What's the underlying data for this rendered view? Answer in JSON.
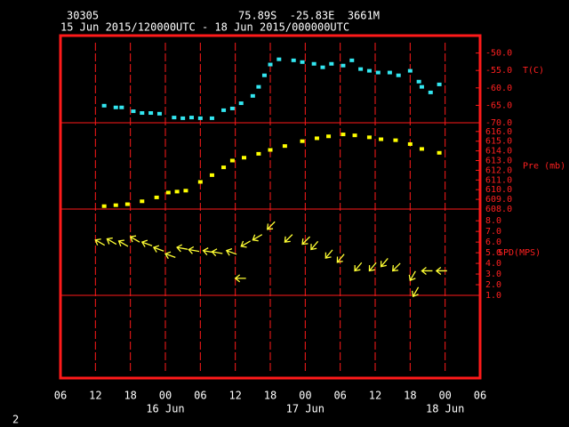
{
  "header": {
    "station": "30305",
    "location": "75.89S  -25.83E  3661M",
    "period": "15 Jun 2015/120000UTC - 18 Jun 2015/000000UTC",
    "footer": "2"
  },
  "chart_data": {
    "type": "meteogram",
    "xlim": [
      6,
      78
    ],
    "xticks": [
      {
        "value": 6,
        "label": "06"
      },
      {
        "value": 12,
        "label": "12"
      },
      {
        "value": 18,
        "label": "18"
      },
      {
        "value": 24,
        "label": "00"
      },
      {
        "value": 30,
        "label": "06"
      },
      {
        "value": 36,
        "label": "12"
      },
      {
        "value": 42,
        "label": "18"
      },
      {
        "value": 48,
        "label": "00"
      },
      {
        "value": 54,
        "label": "06"
      },
      {
        "value": 60,
        "label": "12"
      },
      {
        "value": 66,
        "label": "18"
      },
      {
        "value": 72,
        "label": "00"
      },
      {
        "value": 78,
        "label": "06"
      }
    ],
    "date_labels": [
      {
        "value": 24,
        "label": "16 Jun"
      },
      {
        "value": 48,
        "label": "17 Jun"
      },
      {
        "value": 72,
        "label": "18 Jun"
      }
    ],
    "grid": true,
    "frame_color": "#ff1a1a",
    "panels": [
      {
        "type": "scatter",
        "label": "T(C)",
        "color": "#33e6f0",
        "ylim": [
          -70,
          -45
        ],
        "yticks": [
          {
            "value": -70,
            "label": "-70.0"
          },
          {
            "value": -65,
            "label": "-65.0"
          },
          {
            "value": -60,
            "label": "-60.0"
          },
          {
            "value": -55,
            "label": "-55.0"
          },
          {
            "value": -50,
            "label": "-50.0"
          }
        ],
        "x": [
          13.5,
          15.5,
          16.5,
          18.5,
          20,
          21.5,
          23,
          25.5,
          27,
          28.5,
          30,
          32,
          34,
          35.5,
          37,
          39,
          40,
          41,
          42,
          43.5,
          46,
          47.5,
          49.5,
          51,
          52.5,
          54.5,
          56,
          57.5,
          59,
          60.5,
          62.5,
          64,
          66,
          67.5,
          68,
          69.5,
          71
        ],
        "values": [
          -65.1,
          -65.6,
          -65.6,
          -66.7,
          -67.2,
          -67.2,
          -67.4,
          -68.5,
          -68.7,
          -68.5,
          -68.7,
          -68.7,
          -66.4,
          -65.9,
          -64.4,
          -62.3,
          -59.7,
          -56.4,
          -53.3,
          -51.8,
          -52.1,
          -52.6,
          -53.1,
          -54.1,
          -53.1,
          -53.6,
          -52.1,
          -54.6,
          -55.1,
          -55.6,
          -55.6,
          -56.4,
          -55.1,
          -58.2,
          -59.7,
          -61.3,
          -59.0
        ]
      },
      {
        "type": "scatter",
        "label": "Pre (mb)",
        "color": "#ffff00",
        "ylim": [
          608,
          616.9
        ],
        "yticks": [
          {
            "value": 608,
            "label": "608.0"
          },
          {
            "value": 609,
            "label": "609.0"
          },
          {
            "value": 610,
            "label": "610.0"
          },
          {
            "value": 611,
            "label": "611.0"
          },
          {
            "value": 612,
            "label": "612.0"
          },
          {
            "value": 613,
            "label": "613.0"
          },
          {
            "value": 614,
            "label": "614.0"
          },
          {
            "value": 615,
            "label": "615.0"
          },
          {
            "value": 616,
            "label": "616.0"
          }
        ],
        "x": [
          13.5,
          15.5,
          17.5,
          20,
          22.5,
          24.5,
          26,
          27.5,
          30,
          32,
          34,
          35.5,
          37.5,
          40,
          42,
          44.5,
          47.5,
          50,
          52,
          54.5,
          56.5,
          59,
          61,
          63.5,
          66,
          68,
          71
        ],
        "values": [
          608.3,
          608.4,
          608.5,
          608.8,
          609.2,
          609.7,
          609.8,
          609.9,
          610.8,
          611.5,
          612.3,
          613.0,
          613.3,
          613.7,
          614.1,
          614.5,
          615.0,
          615.3,
          615.5,
          615.7,
          615.6,
          615.4,
          615.2,
          615.1,
          614.7,
          614.2,
          613.8
        ]
      },
      {
        "type": "wind",
        "label": "SPD(MPS)",
        "color": "#ffff33",
        "ylim": [
          1,
          9.1
        ],
        "yticks": [
          {
            "value": 1,
            "label": "1.0"
          },
          {
            "value": 2,
            "label": "2.0"
          },
          {
            "value": 3,
            "label": "3.0"
          },
          {
            "value": 4,
            "label": "4.0"
          },
          {
            "value": 5,
            "label": "5.0"
          },
          {
            "value": 6,
            "label": "6.0"
          },
          {
            "value": 7,
            "label": "7.0"
          },
          {
            "value": 8,
            "label": "8.0"
          }
        ],
        "x": [
          12,
          14,
          16,
          18,
          20,
          22,
          24,
          26,
          28,
          30.5,
          32,
          34.5,
          36,
          37,
          39,
          41.5,
          44.5,
          47.5,
          49,
          51.5,
          53.5,
          56.5,
          59,
          61,
          63,
          66,
          66.5,
          68,
          70.5
        ],
        "values": [
          6.2,
          6.3,
          6.1,
          6.5,
          6.0,
          5.5,
          4.9,
          5.5,
          5.3,
          5.2,
          5.1,
          5.2,
          2.6,
          5.6,
          6.2,
          7.2,
          6.0,
          5.8,
          5.3,
          4.5,
          4.1,
          3.3,
          3.3,
          3.7,
          3.3,
          2.4,
          0.9,
          3.3,
          3.3
        ],
        "directions": [
          120,
          120,
          120,
          120,
          110,
          110,
          110,
          100,
          100,
          100,
          100,
          110,
          90,
          60,
          60,
          45,
          45,
          45,
          40,
          40,
          40,
          40,
          40,
          40,
          45,
          30,
          30,
          90,
          90
        ]
      }
    ]
  }
}
